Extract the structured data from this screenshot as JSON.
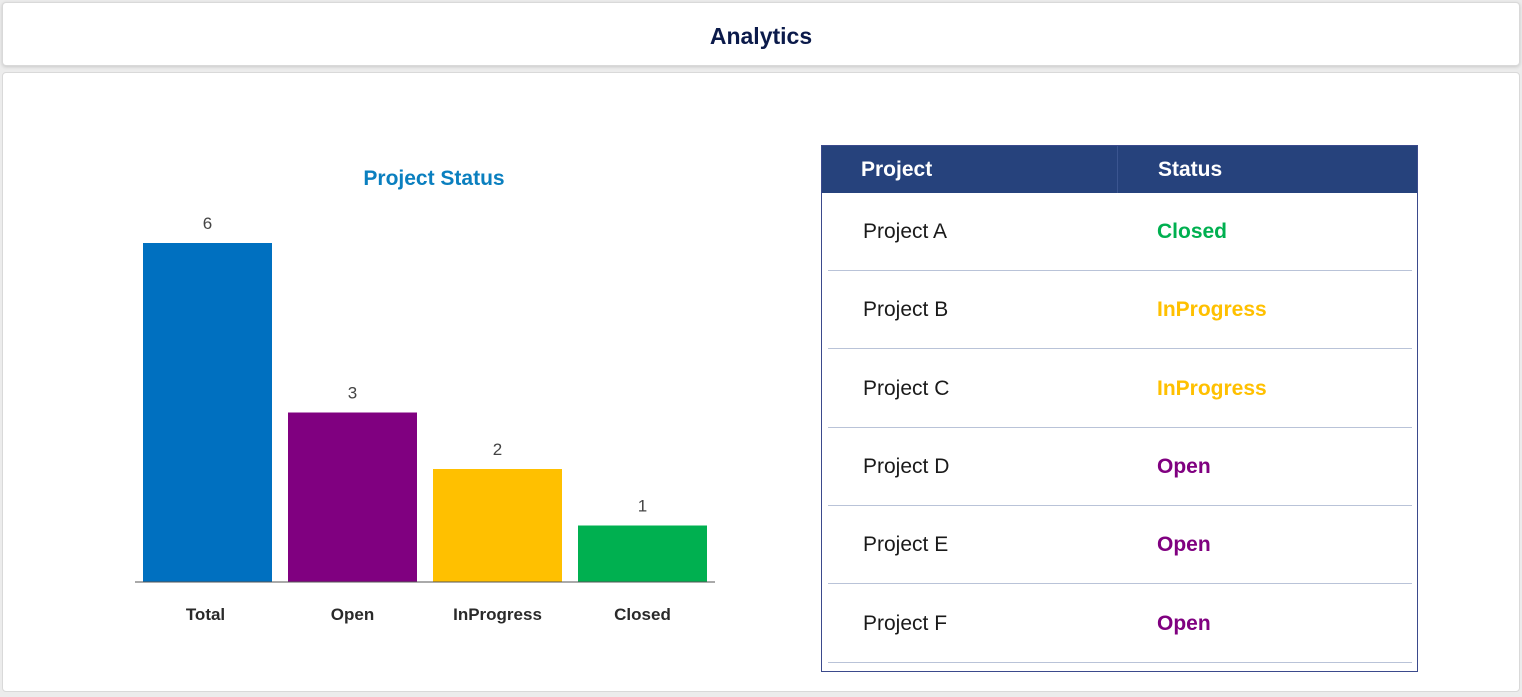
{
  "header": {
    "title": "Analytics"
  },
  "chart_data": {
    "type": "bar",
    "title": "Project Status",
    "categories": [
      "Total",
      "Open",
      "InProgress",
      "Closed"
    ],
    "values": [
      6,
      3,
      2,
      1
    ],
    "colors": [
      "#0070c0",
      "#800080",
      "#ffc000",
      "#00b050"
    ],
    "title_color": "#0a7fbf",
    "ylim": [
      0,
      6
    ],
    "grid": false,
    "legend": "none"
  },
  "table": {
    "headers": {
      "project": "Project",
      "status": "Status"
    },
    "rows": [
      {
        "project": "Project A",
        "status": "Closed"
      },
      {
        "project": "Project B",
        "status": "InProgress"
      },
      {
        "project": "Project C",
        "status": "InProgress"
      },
      {
        "project": "Project D",
        "status": "Open"
      },
      {
        "project": "Project E",
        "status": "Open"
      },
      {
        "project": "Project F",
        "status": "Open"
      }
    ],
    "status_colors": {
      "Closed": "#00b050",
      "InProgress": "#ffc000",
      "Open": "#800080"
    },
    "header_color": "#26427c"
  }
}
